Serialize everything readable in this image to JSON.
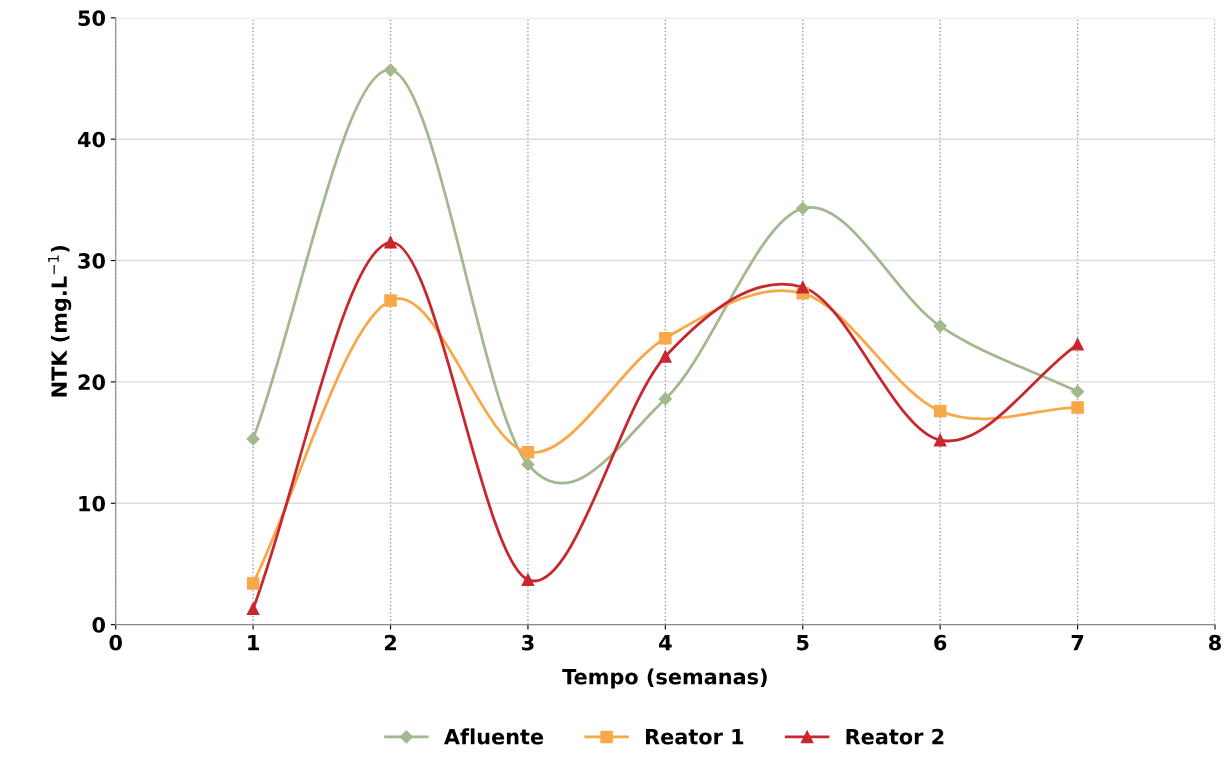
{
  "chart_data": {
    "type": "line",
    "xlabel": "Tempo (semanas)",
    "ylabel": "NTK (mg.L$^{−1}$)",
    "x": [
      1,
      2,
      3,
      4,
      5,
      6,
      7
    ],
    "xlim": [
      0,
      8
    ],
    "xticks": [
      0,
      1,
      2,
      3,
      4,
      5,
      6,
      7,
      8
    ],
    "ylim": [
      0,
      50
    ],
    "yticks": [
      0,
      10,
      20,
      30,
      40,
      50
    ],
    "grid": true,
    "legend": "bottom",
    "line_style": "solid",
    "series": [
      {
        "name": "Afluente",
        "color": "#a2b88f",
        "marker": "diamond",
        "values": [
          15.3,
          45.7,
          13.2,
          18.6,
          34.3,
          24.6,
          19.2
        ]
      },
      {
        "name": "Reator 1",
        "color": "#f7a848",
        "marker": "square",
        "values": [
          3.4,
          26.7,
          14.2,
          23.6,
          27.3,
          17.6,
          17.9
        ]
      },
      {
        "name": "Reator 2",
        "color": "#c8272e",
        "marker": "triangle",
        "values": [
          1.3,
          31.5,
          3.7,
          22.1,
          27.8,
          15.2,
          23.1
        ]
      }
    ]
  }
}
